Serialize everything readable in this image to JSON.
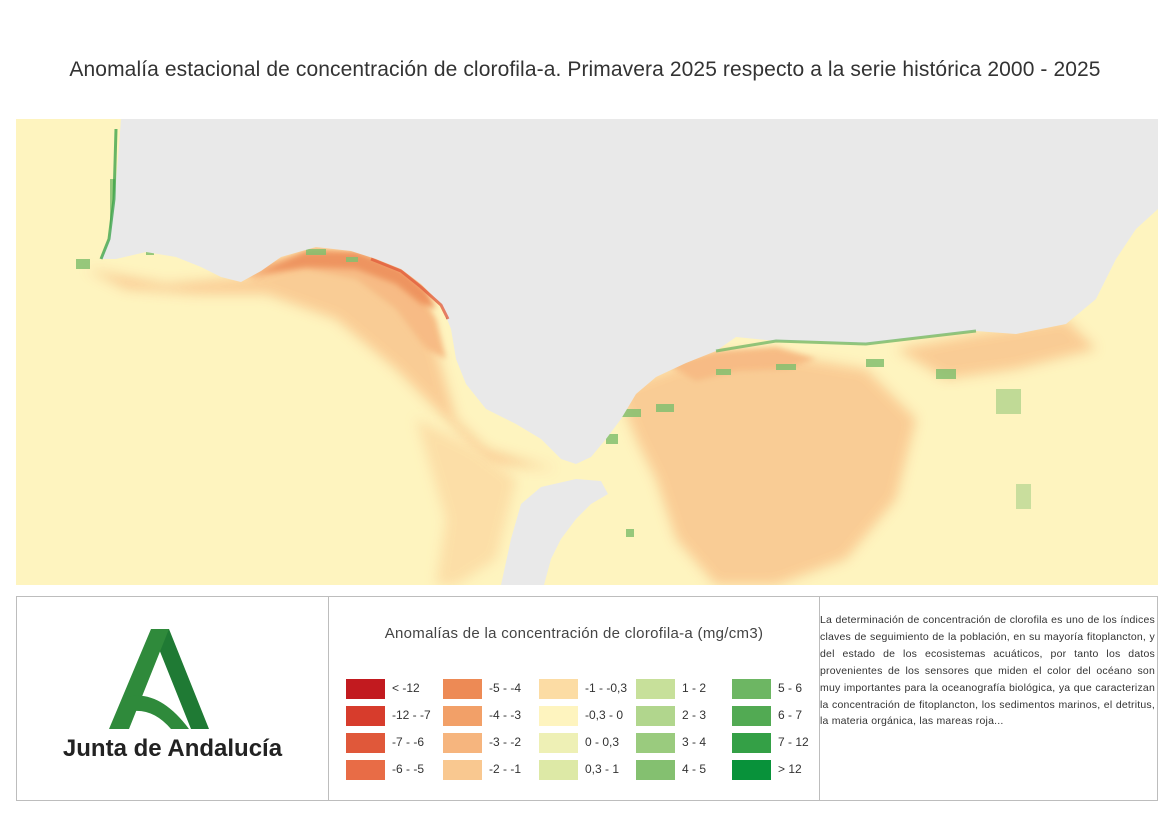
{
  "title": "Anomalía estacional de concentración de clorofila-a. Primavera 2025 respecto a la serie histórica 2000 - 2025",
  "logo": {
    "text": "Junta de Andalucía",
    "color": "#2f8a3b"
  },
  "legend": {
    "title": "Anomalías de la concentración de clorofila-a (mg/cm3)",
    "items": [
      {
        "label": "< -12",
        "color": "#c21a1f"
      },
      {
        "label": "-12 - -7",
        "color": "#d73c2c"
      },
      {
        "label": "-7 - -6",
        "color": "#e0583a"
      },
      {
        "label": "-6 - -5",
        "color": "#e86c46"
      },
      {
        "label": "-5 - -4",
        "color": "#ed8a55"
      },
      {
        "label": "-4 - -3",
        "color": "#f2a068"
      },
      {
        "label": "-3 - -2",
        "color": "#f6b57e"
      },
      {
        "label": "-2 - -1",
        "color": "#f9c890"
      },
      {
        "label": "-1 - -0,3",
        "color": "#fcdca4"
      },
      {
        "label": "-0,3 - 0",
        "color": "#fef4bf"
      },
      {
        "label": "0 - 0,3",
        "color": "#eef0b5"
      },
      {
        "label": "0,3 - 1",
        "color": "#dde9a6"
      },
      {
        "label": "1 - 2",
        "color": "#c7e09a"
      },
      {
        "label": "2 - 3",
        "color": "#b1d68d"
      },
      {
        "label": "3 - 4",
        "color": "#9acb7e"
      },
      {
        "label": "4 - 5",
        "color": "#84c070"
      },
      {
        "label": "5 - 6",
        "color": "#6db663"
      },
      {
        "label": "6 - 7",
        "color": "#52aa53"
      },
      {
        "label": "7 - 12",
        "color": "#34a046"
      },
      {
        "label": "> 12",
        "color": "#08923a"
      }
    ]
  },
  "description": "La determinación de concentración de clorofila es uno de los índices claves de seguimiento de la población, en su mayoría fitoplancton, y del estado de los ecosistemas acuáticos, por tanto los datos provenientes de los sensores que miden el color del océano son muy importantes para la oceanografía biológica, ya que caracterizan la concentración de fitoplancton, los sedimentos marinos, el detritus, la materia orgánica, las mareas roja...",
  "map": {
    "land_color": "#e9e9e9",
    "sea_color": "#fef4bf"
  }
}
